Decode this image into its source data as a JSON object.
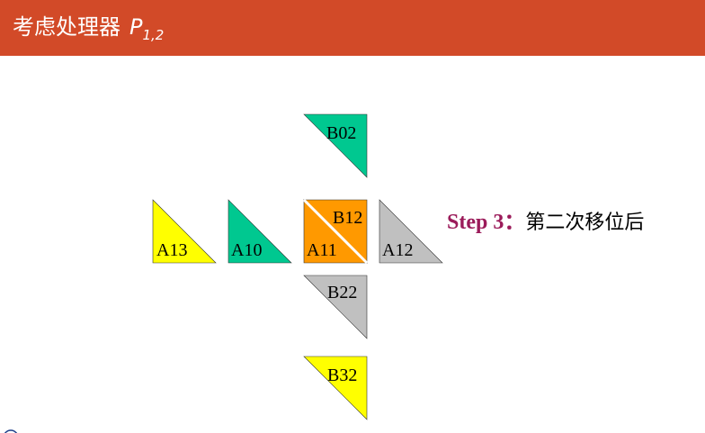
{
  "header": {
    "title": "考虑处理器",
    "symbol": "P",
    "subscript": "1,2",
    "bg_color": "#D24A28"
  },
  "step": {
    "label": "Step 3：",
    "text": "第二次移位后"
  },
  "blocks": {
    "b02": "B02",
    "a13": "A13",
    "a10": "A10",
    "a11": "A11",
    "b12": "B12",
    "a12": "A12",
    "b22": "B22",
    "b32": "B32"
  },
  "colors": {
    "green": "#00C890",
    "yellow": "#FFFF00",
    "orange": "#FF9900",
    "gray": "#C0C0C0",
    "step_label": "#9B1B5A"
  }
}
